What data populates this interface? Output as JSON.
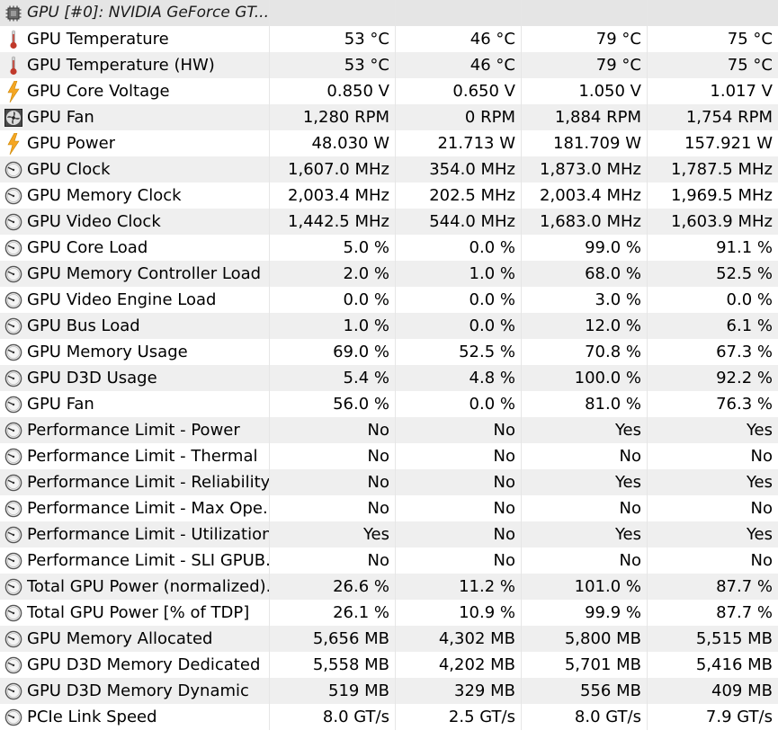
{
  "device": {
    "title": "GPU [#0]: NVIDIA GeForce GT...",
    "icon": "chip-icon"
  },
  "rows": [
    {
      "name": "GPU Temperature",
      "icon": "thermometer-icon",
      "values": [
        "53 °C",
        "46 °C",
        "79 °C",
        "75 °C"
      ]
    },
    {
      "name": "GPU Temperature (HW)",
      "icon": "thermometer-icon",
      "values": [
        "53 °C",
        "46 °C",
        "79 °C",
        "75 °C"
      ]
    },
    {
      "name": "GPU Core Voltage",
      "icon": "lightning-icon",
      "values": [
        "0.850 V",
        "0.650 V",
        "1.050 V",
        "1.017 V"
      ]
    },
    {
      "name": "GPU Fan",
      "icon": "fan-icon",
      "values": [
        "1,280 RPM",
        "0 RPM",
        "1,884 RPM",
        "1,754 RPM"
      ]
    },
    {
      "name": "GPU Power",
      "icon": "lightning-icon",
      "values": [
        "48.030 W",
        "21.713 W",
        "181.709 W",
        "157.921 W"
      ]
    },
    {
      "name": "GPU Clock",
      "icon": "gauge-icon",
      "values": [
        "1,607.0 MHz",
        "354.0 MHz",
        "1,873.0 MHz",
        "1,787.5 MHz"
      ]
    },
    {
      "name": "GPU Memory Clock",
      "icon": "gauge-icon",
      "values": [
        "2,003.4 MHz",
        "202.5 MHz",
        "2,003.4 MHz",
        "1,969.5 MHz"
      ]
    },
    {
      "name": "GPU Video Clock",
      "icon": "gauge-icon",
      "values": [
        "1,442.5 MHz",
        "544.0 MHz",
        "1,683.0 MHz",
        "1,603.9 MHz"
      ]
    },
    {
      "name": "GPU Core Load",
      "icon": "gauge-icon",
      "values": [
        "5.0 %",
        "0.0 %",
        "99.0 %",
        "91.1 %"
      ]
    },
    {
      "name": "GPU Memory Controller Load",
      "icon": "gauge-icon",
      "values": [
        "2.0 %",
        "1.0 %",
        "68.0 %",
        "52.5 %"
      ]
    },
    {
      "name": "GPU Video Engine Load",
      "icon": "gauge-icon",
      "values": [
        "0.0 %",
        "0.0 %",
        "3.0 %",
        "0.0 %"
      ]
    },
    {
      "name": "GPU Bus Load",
      "icon": "gauge-icon",
      "values": [
        "1.0 %",
        "0.0 %",
        "12.0 %",
        "6.1 %"
      ]
    },
    {
      "name": "GPU Memory Usage",
      "icon": "gauge-icon",
      "values": [
        "69.0 %",
        "52.5 %",
        "70.8 %",
        "67.3 %"
      ]
    },
    {
      "name": "GPU D3D Usage",
      "icon": "gauge-icon",
      "values": [
        "5.4 %",
        "4.8 %",
        "100.0 %",
        "92.2 %"
      ]
    },
    {
      "name": "GPU Fan",
      "icon": "gauge-icon",
      "values": [
        "56.0 %",
        "0.0 %",
        "81.0 %",
        "76.3 %"
      ]
    },
    {
      "name": "Performance Limit - Power",
      "icon": "gauge-icon",
      "values": [
        "No",
        "No",
        "Yes",
        "Yes"
      ]
    },
    {
      "name": "Performance Limit - Thermal",
      "icon": "gauge-icon",
      "values": [
        "No",
        "No",
        "No",
        "No"
      ]
    },
    {
      "name": "Performance Limit - Reliability...",
      "icon": "gauge-icon",
      "values": [
        "No",
        "No",
        "Yes",
        "Yes"
      ]
    },
    {
      "name": "Performance Limit - Max Ope...",
      "icon": "gauge-icon",
      "values": [
        "No",
        "No",
        "No",
        "No"
      ]
    },
    {
      "name": "Performance Limit - Utilization",
      "icon": "gauge-icon",
      "values": [
        "Yes",
        "No",
        "Yes",
        "Yes"
      ]
    },
    {
      "name": "Performance Limit - SLI GPUB...",
      "icon": "gauge-icon",
      "values": [
        "No",
        "No",
        "No",
        "No"
      ]
    },
    {
      "name": "Total GPU Power (normalized)...",
      "icon": "gauge-icon",
      "values": [
        "26.6 %",
        "11.2 %",
        "101.0 %",
        "87.7 %"
      ]
    },
    {
      "name": "Total GPU Power [% of TDP]",
      "icon": "gauge-icon",
      "values": [
        "26.1 %",
        "10.9 %",
        "99.9 %",
        "87.7 %"
      ]
    },
    {
      "name": "GPU Memory Allocated",
      "icon": "gauge-icon",
      "values": [
        "5,656 MB",
        "4,302 MB",
        "5,800 MB",
        "5,515 MB"
      ]
    },
    {
      "name": "GPU D3D Memory Dedicated",
      "icon": "gauge-icon",
      "values": [
        "5,558 MB",
        "4,202 MB",
        "5,701 MB",
        "5,416 MB"
      ]
    },
    {
      "name": "GPU D3D Memory Dynamic",
      "icon": "gauge-icon",
      "values": [
        "519 MB",
        "329 MB",
        "556 MB",
        "409 MB"
      ]
    },
    {
      "name": "PCIe Link Speed",
      "icon": "gauge-icon",
      "values": [
        "8.0 GT/s",
        "2.5 GT/s",
        "8.0 GT/s",
        "7.9 GT/s"
      ]
    }
  ],
  "colors": {
    "row_alt": "#efefef",
    "header_bg": "#e5e5e5",
    "thermometer": "#c0392b",
    "lightning": "#f5a623",
    "gauge": "#555555"
  }
}
